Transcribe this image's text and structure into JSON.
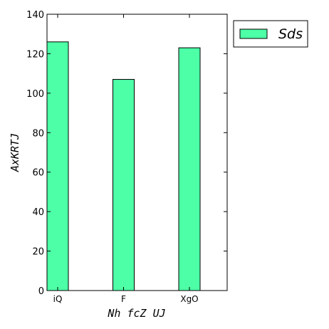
{
  "chart_data": {
    "type": "bar",
    "categories": [
      "iQ",
      "F",
      "XgO"
    ],
    "series": [
      {
        "name": "Sds",
        "values": [
          126,
          107,
          123
        ],
        "color": "#4dffa6"
      }
    ],
    "xlabel": "Nh fcZ UJ",
    "ylabel": "AxKRTJ",
    "ylim": [
      0,
      140
    ],
    "yticks": [
      0,
      20,
      40,
      60,
      80,
      100,
      120,
      140
    ],
    "grid": false,
    "legend_position": "outside-top-right"
  }
}
